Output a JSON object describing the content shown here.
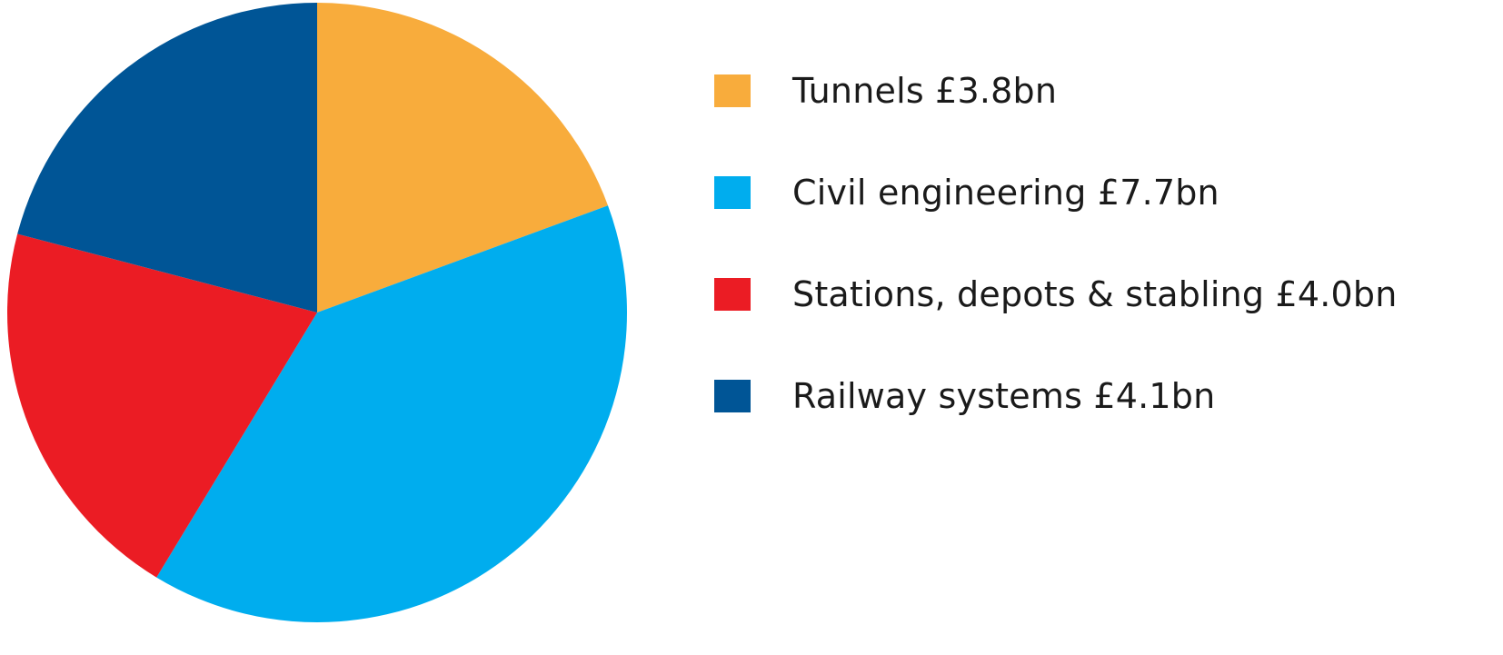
{
  "chart_data": {
    "type": "pie",
    "title": "",
    "unit": "£bn",
    "start_angle_deg": 0,
    "direction": "clockwise",
    "legend_position": "right",
    "slices": [
      {
        "label": "Tunnels £3.8bn",
        "category": "Tunnels",
        "value": 3.8,
        "color": "#F8AC3C"
      },
      {
        "label": "Civil engineering £7.7bn",
        "category": "Civil engineering",
        "value": 7.7,
        "color": "#00ADEE"
      },
      {
        "label": "Stations, depots & stabling £4.0bn",
        "category": "Stations, depots & stabling",
        "value": 4.0,
        "color": "#EB1C24"
      },
      {
        "label": "Railway systems £4.1bn",
        "category": "Railway systems",
        "value": 4.1,
        "color": "#005596"
      }
    ]
  }
}
